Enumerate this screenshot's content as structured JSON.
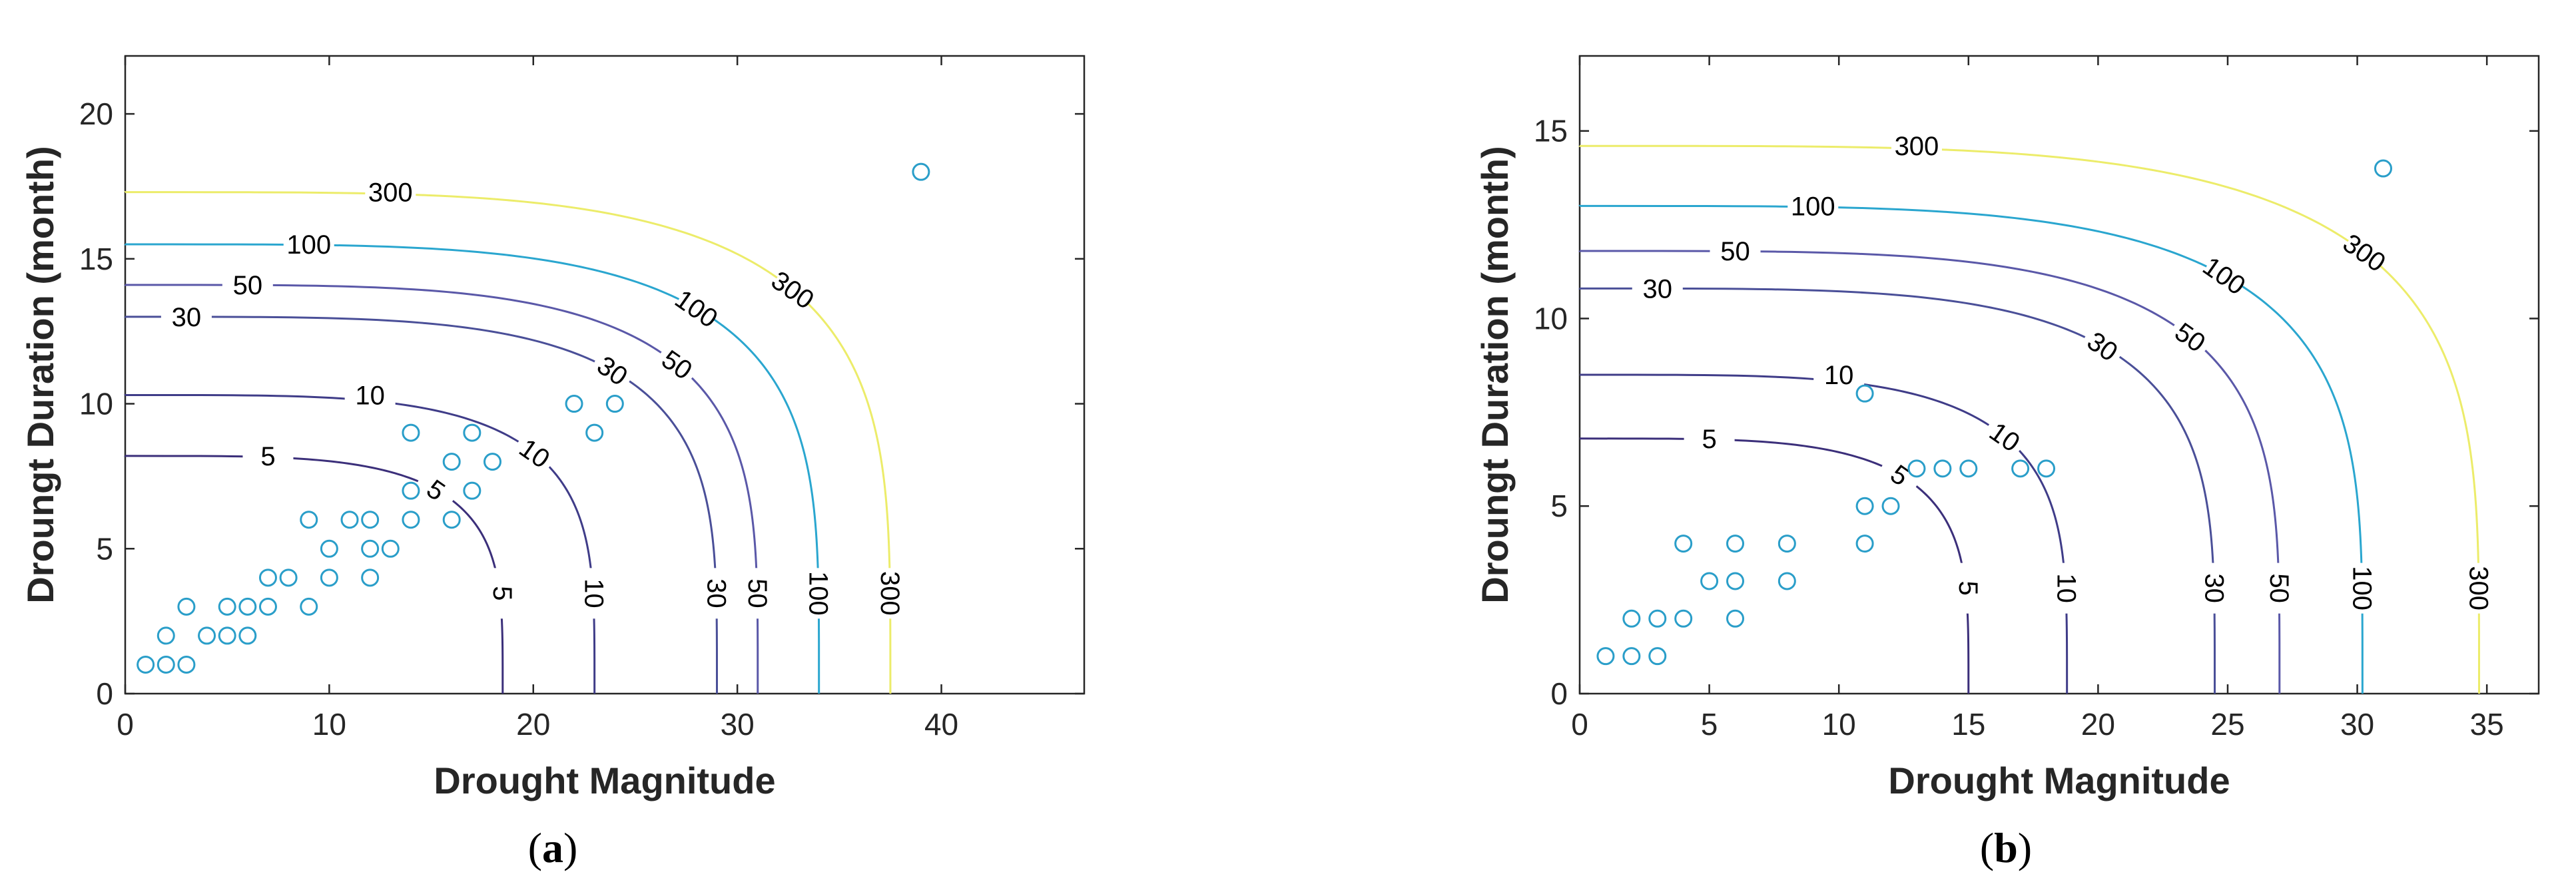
{
  "colors": {
    "marker": "#2a9ec9",
    "axis": "#262626",
    "level_5": "#3b2f7a",
    "level_10": "#3f3c88",
    "level_30": "#4a4f98",
    "level_50": "#5a58a8",
    "level_100": "#2aa6cf",
    "level_300": "#ecec6a"
  },
  "chart_data": [
    {
      "type": "scatter",
      "panel_label": "a",
      "caption_open": "(",
      "caption_close": ")",
      "xlabel": "Drought Magnitude",
      "ylabel": "Droungt Duration (month)",
      "xlim": [
        0,
        47
      ],
      "ylim": [
        0,
        22
      ],
      "xticks": [
        0,
        10,
        20,
        30,
        40
      ],
      "yticks": [
        0,
        5,
        10,
        15,
        20
      ],
      "points": [
        [
          1,
          1
        ],
        [
          2,
          1
        ],
        [
          3,
          1
        ],
        [
          2,
          2
        ],
        [
          3,
          3
        ],
        [
          4,
          2
        ],
        [
          5,
          2
        ],
        [
          5,
          3
        ],
        [
          6,
          2
        ],
        [
          6,
          3
        ],
        [
          7,
          3
        ],
        [
          7,
          4
        ],
        [
          8,
          4
        ],
        [
          9,
          3
        ],
        [
          9,
          6
        ],
        [
          10,
          4
        ],
        [
          10,
          5
        ],
        [
          11,
          6
        ],
        [
          12,
          4
        ],
        [
          12,
          5
        ],
        [
          12,
          6
        ],
        [
          13,
          5
        ],
        [
          14,
          6
        ],
        [
          14,
          7
        ],
        [
          14,
          9
        ],
        [
          16,
          6
        ],
        [
          16,
          8
        ],
        [
          17,
          7
        ],
        [
          17,
          9
        ],
        [
          18,
          8
        ],
        [
          22,
          10
        ],
        [
          23,
          9
        ],
        [
          24,
          10
        ],
        [
          39,
          18
        ]
      ],
      "contours": [
        {
          "level": "5",
          "x_intercept": 18.5,
          "y_intercept": 8.2,
          "top_label_x": 7,
          "color_key": "level_5"
        },
        {
          "level": "10",
          "x_intercept": 23.0,
          "y_intercept": 10.3,
          "top_label_x": 12,
          "color_key": "level_10"
        },
        {
          "level": "30",
          "x_intercept": 29.0,
          "y_intercept": 13.0,
          "top_label_x": 3,
          "color_key": "level_30"
        },
        {
          "level": "50",
          "x_intercept": 31.0,
          "y_intercept": 14.1,
          "top_label_x": 6,
          "color_key": "level_50"
        },
        {
          "level": "100",
          "x_intercept": 34.0,
          "y_intercept": 15.5,
          "top_label_x": 9,
          "color_key": "level_100"
        },
        {
          "level": "300",
          "x_intercept": 37.5,
          "y_intercept": 17.3,
          "top_label_x": 13,
          "color_key": "level_300"
        }
      ]
    },
    {
      "type": "scatter",
      "panel_label": "b",
      "caption_open": "(",
      "caption_close": ")",
      "xlabel": "Drought Magnitude",
      "ylabel": "Droungt Duration (month)",
      "xlim": [
        0,
        37
      ],
      "ylim": [
        0,
        17
      ],
      "xticks": [
        0,
        5,
        10,
        15,
        20,
        25,
        30,
        35
      ],
      "yticks": [
        0,
        5,
        10,
        15
      ],
      "points": [
        [
          1,
          1
        ],
        [
          2,
          1
        ],
        [
          2,
          2
        ],
        [
          3,
          1
        ],
        [
          3,
          2
        ],
        [
          4,
          2
        ],
        [
          4,
          4
        ],
        [
          5,
          3
        ],
        [
          6,
          2
        ],
        [
          6,
          3
        ],
        [
          6,
          4
        ],
        [
          8,
          3
        ],
        [
          8,
          4
        ],
        [
          11,
          4
        ],
        [
          11,
          5
        ],
        [
          11,
          8
        ],
        [
          12,
          5
        ],
        [
          13,
          6
        ],
        [
          14,
          6
        ],
        [
          15,
          6
        ],
        [
          17,
          6
        ],
        [
          18,
          6
        ],
        [
          31,
          14
        ]
      ],
      "contours": [
        {
          "level": "5",
          "x_intercept": 15.0,
          "y_intercept": 6.8,
          "top_label_x": 5,
          "color_key": "level_5"
        },
        {
          "level": "10",
          "x_intercept": 18.8,
          "y_intercept": 8.5,
          "top_label_x": 10,
          "color_key": "level_10"
        },
        {
          "level": "30",
          "x_intercept": 24.5,
          "y_intercept": 10.8,
          "top_label_x": 3,
          "color_key": "level_30"
        },
        {
          "level": "50",
          "x_intercept": 27.0,
          "y_intercept": 11.8,
          "top_label_x": 6,
          "color_key": "level_50"
        },
        {
          "level": "100",
          "x_intercept": 30.2,
          "y_intercept": 13.0,
          "top_label_x": 9,
          "color_key": "level_100"
        },
        {
          "level": "300",
          "x_intercept": 34.7,
          "y_intercept": 14.6,
          "top_label_x": 13,
          "color_key": "level_300"
        }
      ]
    }
  ]
}
